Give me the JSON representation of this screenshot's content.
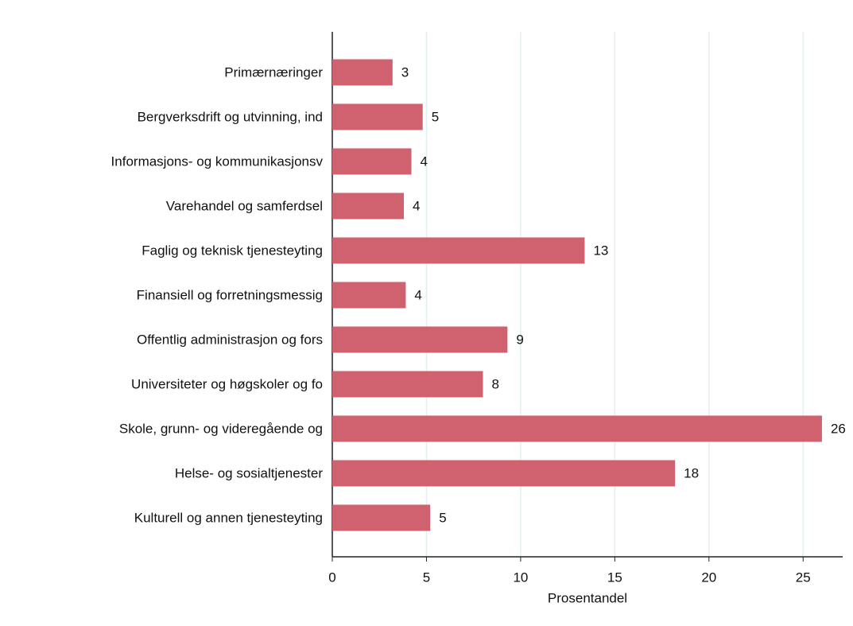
{
  "chart_data": {
    "type": "hbar",
    "x_label": "Prosentandel",
    "categories": [
      "Primærnæringer",
      "Bergverksdrift og utvinning, ind",
      "Informasjons- og kommunikasjonsv",
      "Varehandel og samferdsel",
      "Faglig og teknisk tjenesteyting",
      "Finansiell og forretningsmessig",
      "Offentlig administrasjon og fors",
      "Universiteter og høgskoler og fo",
      "Skole, grunn- og videregående og",
      "Helse- og sosialtjenester",
      "Kulturell og annen tjenesteyting"
    ],
    "values": [
      3.2,
      4.8,
      4.2,
      3.8,
      13.4,
      3.9,
      9.3,
      8.0,
      26.0,
      18.2,
      5.2
    ],
    "value_labels": [
      "3",
      "5",
      "4",
      "4",
      "13",
      "4",
      "9",
      "8",
      "26",
      "18",
      "5"
    ],
    "color": "#d0616e",
    "xlim": [
      0,
      27.1
    ],
    "xticks": [
      0,
      5,
      10,
      15,
      20,
      25
    ],
    "grid": true
  }
}
